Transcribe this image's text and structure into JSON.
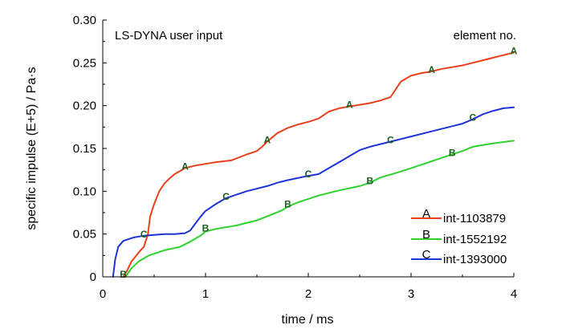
{
  "chart_data": {
    "type": "line",
    "annotation_left": "LS-DYNA user input",
    "annotation_right": "element no.",
    "xlabel": "time / ms",
    "ylabel": "specific impulse (E+5) / Pa·s",
    "xlim": [
      0,
      4
    ],
    "ylim": [
      0,
      0.3
    ],
    "x_ticks": [
      0,
      1,
      2,
      3,
      4
    ],
    "x_tick_labels": [
      "0",
      "1",
      "2",
      "3",
      "4"
    ],
    "y_ticks": [
      0,
      0.05,
      0.1,
      0.15,
      0.2,
      0.25,
      0.3
    ],
    "y_tick_labels": [
      "0",
      "0.05",
      "0.10",
      "0.15",
      "0.20",
      "0.25",
      "0.30"
    ],
    "grid": false,
    "legend_position": "bottom-right",
    "series": [
      {
        "name": "int-1103879",
        "marker": "A",
        "color": "#e8401c",
        "x": [
          0.2,
          0.24,
          0.28,
          0.32,
          0.36,
          0.4,
          0.44,
          0.46,
          0.5,
          0.55,
          0.6,
          0.65,
          0.7,
          0.8,
          0.9,
          1.0,
          1.1,
          1.25,
          1.4,
          1.5,
          1.55,
          1.6,
          1.7,
          1.8,
          1.9,
          2.0,
          2.1,
          2.2,
          2.3,
          2.4,
          2.5,
          2.6,
          2.7,
          2.8,
          2.9,
          3.0,
          3.1,
          3.2,
          3.3,
          3.4,
          3.5,
          3.6,
          3.7,
          3.8,
          3.9,
          4.0
        ],
        "y": [
          0.0,
          0.008,
          0.018,
          0.024,
          0.03,
          0.035,
          0.05,
          0.07,
          0.085,
          0.1,
          0.109,
          0.115,
          0.12,
          0.127,
          0.13,
          0.132,
          0.134,
          0.136,
          0.143,
          0.147,
          0.152,
          0.158,
          0.168,
          0.174,
          0.178,
          0.181,
          0.185,
          0.193,
          0.197,
          0.199,
          0.201,
          0.203,
          0.206,
          0.21,
          0.228,
          0.235,
          0.238,
          0.24,
          0.243,
          0.245,
          0.247,
          0.25,
          0.253,
          0.256,
          0.259,
          0.262
        ]
      },
      {
        "name": "int-1552192",
        "marker": "B",
        "color": "#2ed12e",
        "x": [
          0.22,
          0.28,
          0.35,
          0.45,
          0.6,
          0.75,
          0.85,
          0.95,
          1.0,
          1.1,
          1.3,
          1.5,
          1.65,
          1.75,
          1.8,
          1.9,
          2.0,
          2.1,
          2.3,
          2.5,
          2.6,
          2.7,
          2.9,
          3.1,
          3.3,
          3.5,
          3.6,
          3.8,
          4.0
        ],
        "y": [
          0.0,
          0.01,
          0.018,
          0.025,
          0.031,
          0.035,
          0.041,
          0.048,
          0.053,
          0.056,
          0.06,
          0.066,
          0.073,
          0.078,
          0.082,
          0.087,
          0.091,
          0.095,
          0.101,
          0.106,
          0.11,
          0.116,
          0.123,
          0.131,
          0.139,
          0.147,
          0.152,
          0.156,
          0.159
        ]
      },
      {
        "name": "int-1393000",
        "marker": "C",
        "color": "#1c34d9",
        "x": [
          0.1,
          0.12,
          0.15,
          0.2,
          0.3,
          0.4,
          0.5,
          0.6,
          0.7,
          0.8,
          0.85,
          0.9,
          0.95,
          1.0,
          1.1,
          1.2,
          1.4,
          1.6,
          1.7,
          1.8,
          2.0,
          2.1,
          2.2,
          2.3,
          2.4,
          2.5,
          2.6,
          2.8,
          3.0,
          3.2,
          3.4,
          3.5,
          3.6,
          3.7,
          3.8,
          3.9,
          4.0
        ],
        "y": [
          0.0,
          0.02,
          0.035,
          0.042,
          0.046,
          0.048,
          0.049,
          0.05,
          0.05,
          0.051,
          0.054,
          0.062,
          0.07,
          0.077,
          0.085,
          0.092,
          0.1,
          0.106,
          0.11,
          0.113,
          0.118,
          0.12,
          0.127,
          0.134,
          0.141,
          0.148,
          0.152,
          0.158,
          0.164,
          0.17,
          0.176,
          0.179,
          0.184,
          0.19,
          0.194,
          0.197,
          0.198
        ]
      }
    ],
    "marker_labels": [
      {
        "series": 0,
        "text": "A",
        "x": 0.8,
        "y": 0.127
      },
      {
        "series": 0,
        "text": "A",
        "x": 1.6,
        "y": 0.158
      },
      {
        "series": 0,
        "text": "A",
        "x": 2.4,
        "y": 0.199
      },
      {
        "series": 0,
        "text": "A",
        "x": 3.2,
        "y": 0.24
      },
      {
        "series": 0,
        "text": "A",
        "x": 4.0,
        "y": 0.262
      },
      {
        "series": 1,
        "text": "B",
        "x": 0.2,
        "y": 0.001
      },
      {
        "series": 1,
        "text": "B",
        "x": 1.0,
        "y": 0.055
      },
      {
        "series": 1,
        "text": "B",
        "x": 1.8,
        "y": 0.083
      },
      {
        "series": 1,
        "text": "B",
        "x": 2.6,
        "y": 0.11
      },
      {
        "series": 1,
        "text": "B",
        "x": 3.4,
        "y": 0.143
      },
      {
        "series": 2,
        "text": "C",
        "x": 0.4,
        "y": 0.048
      },
      {
        "series": 2,
        "text": "C",
        "x": 1.2,
        "y": 0.092
      },
      {
        "series": 2,
        "text": "C",
        "x": 2.0,
        "y": 0.118
      },
      {
        "series": 2,
        "text": "C",
        "x": 2.8,
        "y": 0.158
      },
      {
        "series": 2,
        "text": "C",
        "x": 3.6,
        "y": 0.184
      }
    ]
  }
}
